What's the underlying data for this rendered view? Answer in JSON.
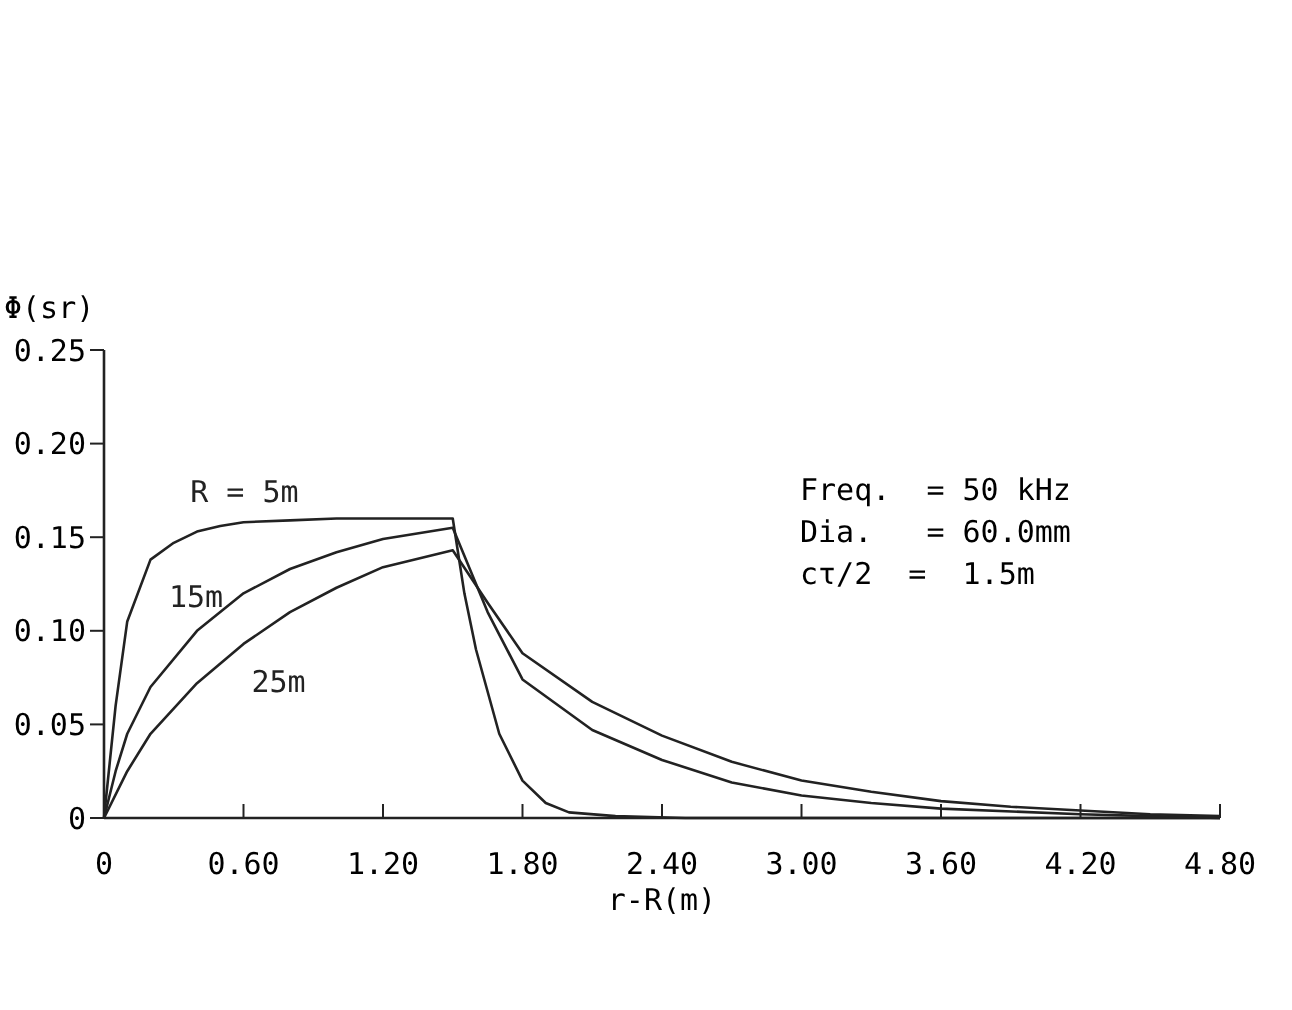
{
  "chart_data": {
    "type": "line",
    "xlabel": "r-R(m)",
    "ylabel": "Φ(sr)",
    "xlim": [
      0,
      4.8
    ],
    "xticks": [
      0,
      {
        "value": 0.6,
        "label": "0.60"
      },
      {
        "value": 1.2,
        "label": "1.20"
      },
      {
        "value": 1.8,
        "label": "1.80"
      },
      {
        "value": 2.4,
        "label": "2.40"
      },
      {
        "value": 3.0,
        "label": "3.00"
      },
      {
        "value": 3.6,
        "label": "3.60"
      },
      {
        "value": 4.2,
        "label": "4.20"
      },
      {
        "value": 4.8,
        "label": "4.80"
      }
    ],
    "ylim": [
      0,
      0.25
    ],
    "yticks": [
      0,
      {
        "value": 0.05,
        "label": "0.05"
      },
      {
        "value": 0.1,
        "label": "0.10"
      },
      {
        "value": 0.15,
        "label": "0.15"
      },
      {
        "value": 0.2,
        "label": "0.20"
      },
      {
        "value": 0.25,
        "label": "0.25"
      }
    ],
    "grid": false,
    "legend": false,
    "marker": "none",
    "line_style": "solid",
    "annotations": [
      "Freq.  = 50 kHz",
      "Dia.   = 60.0mm",
      "cτ/2  =  1.5m"
    ],
    "series": [
      {
        "name": "R = 5m",
        "color": "#222222",
        "x": [
          0,
          0.05,
          0.1,
          0.2,
          0.3,
          0.4,
          0.5,
          0.6,
          0.8,
          1.0,
          1.2,
          1.5,
          1.55,
          1.6,
          1.7,
          1.8,
          1.9,
          2.0,
          2.2,
          2.5,
          3.0,
          4.8
        ],
        "values": [
          0,
          0.06,
          0.105,
          0.138,
          0.147,
          0.153,
          0.156,
          0.158,
          0.159,
          0.16,
          0.16,
          0.16,
          0.12,
          0.09,
          0.045,
          0.02,
          0.008,
          0.003,
          0.001,
          0,
          0,
          0
        ]
      },
      {
        "name": "15m",
        "color": "#222222",
        "x": [
          0,
          0.05,
          0.1,
          0.2,
          0.4,
          0.6,
          0.8,
          1.0,
          1.2,
          1.5,
          1.65,
          1.8,
          2.1,
          2.4,
          2.7,
          3.0,
          3.3,
          3.6,
          4.2,
          4.5,
          4.8
        ],
        "values": [
          0,
          0.025,
          0.045,
          0.07,
          0.1,
          0.12,
          0.133,
          0.142,
          0.149,
          0.155,
          0.11,
          0.074,
          0.047,
          0.031,
          0.019,
          0.012,
          0.008,
          0.005,
          0.002,
          0.001,
          0
        ]
      },
      {
        "name": "25m",
        "color": "#222222",
        "x": [
          0,
          0.1,
          0.2,
          0.4,
          0.6,
          0.8,
          1.0,
          1.2,
          1.5,
          1.65,
          1.8,
          2.1,
          2.4,
          2.7,
          3.0,
          3.3,
          3.6,
          3.9,
          4.2,
          4.5,
          4.8
        ],
        "values": [
          0,
          0.025,
          0.045,
          0.072,
          0.093,
          0.11,
          0.123,
          0.134,
          0.143,
          0.115,
          0.088,
          0.062,
          0.044,
          0.03,
          0.02,
          0.014,
          0.009,
          0.006,
          0.004,
          0.002,
          0.001
        ]
      }
    ]
  }
}
